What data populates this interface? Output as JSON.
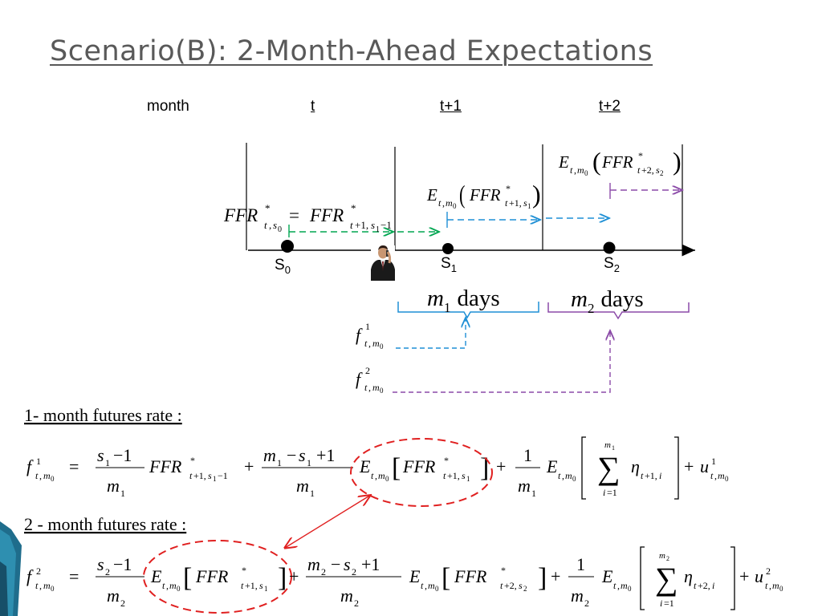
{
  "slide": {
    "title": "Scenario(B): 2-Month-Ahead Expectations"
  },
  "timeline": {
    "month_label": "month",
    "periods": [
      "t",
      "t+1",
      "t+2"
    ],
    "points": [
      {
        "letter": "S",
        "sub": "0"
      },
      {
        "letter": "S",
        "sub": "1"
      },
      {
        "letter": "S",
        "sub": "2"
      }
    ],
    "span1": {
      "var": "m",
      "sub": "1",
      "word": "days"
    },
    "span2": {
      "var": "m",
      "sub": "2",
      "word": "days"
    }
  },
  "formulas": {
    "line1_label": "1- month futures rate :",
    "line2_label": "2 - month futures rate :"
  },
  "colors": {
    "title": "#595959",
    "green": "#00A651",
    "blue": "#1E8FD5",
    "purple": "#8B4AA8",
    "red": "#E02020",
    "accent": "#1F6D8C"
  },
  "icons": {
    "person": "person-on-phone-icon"
  }
}
